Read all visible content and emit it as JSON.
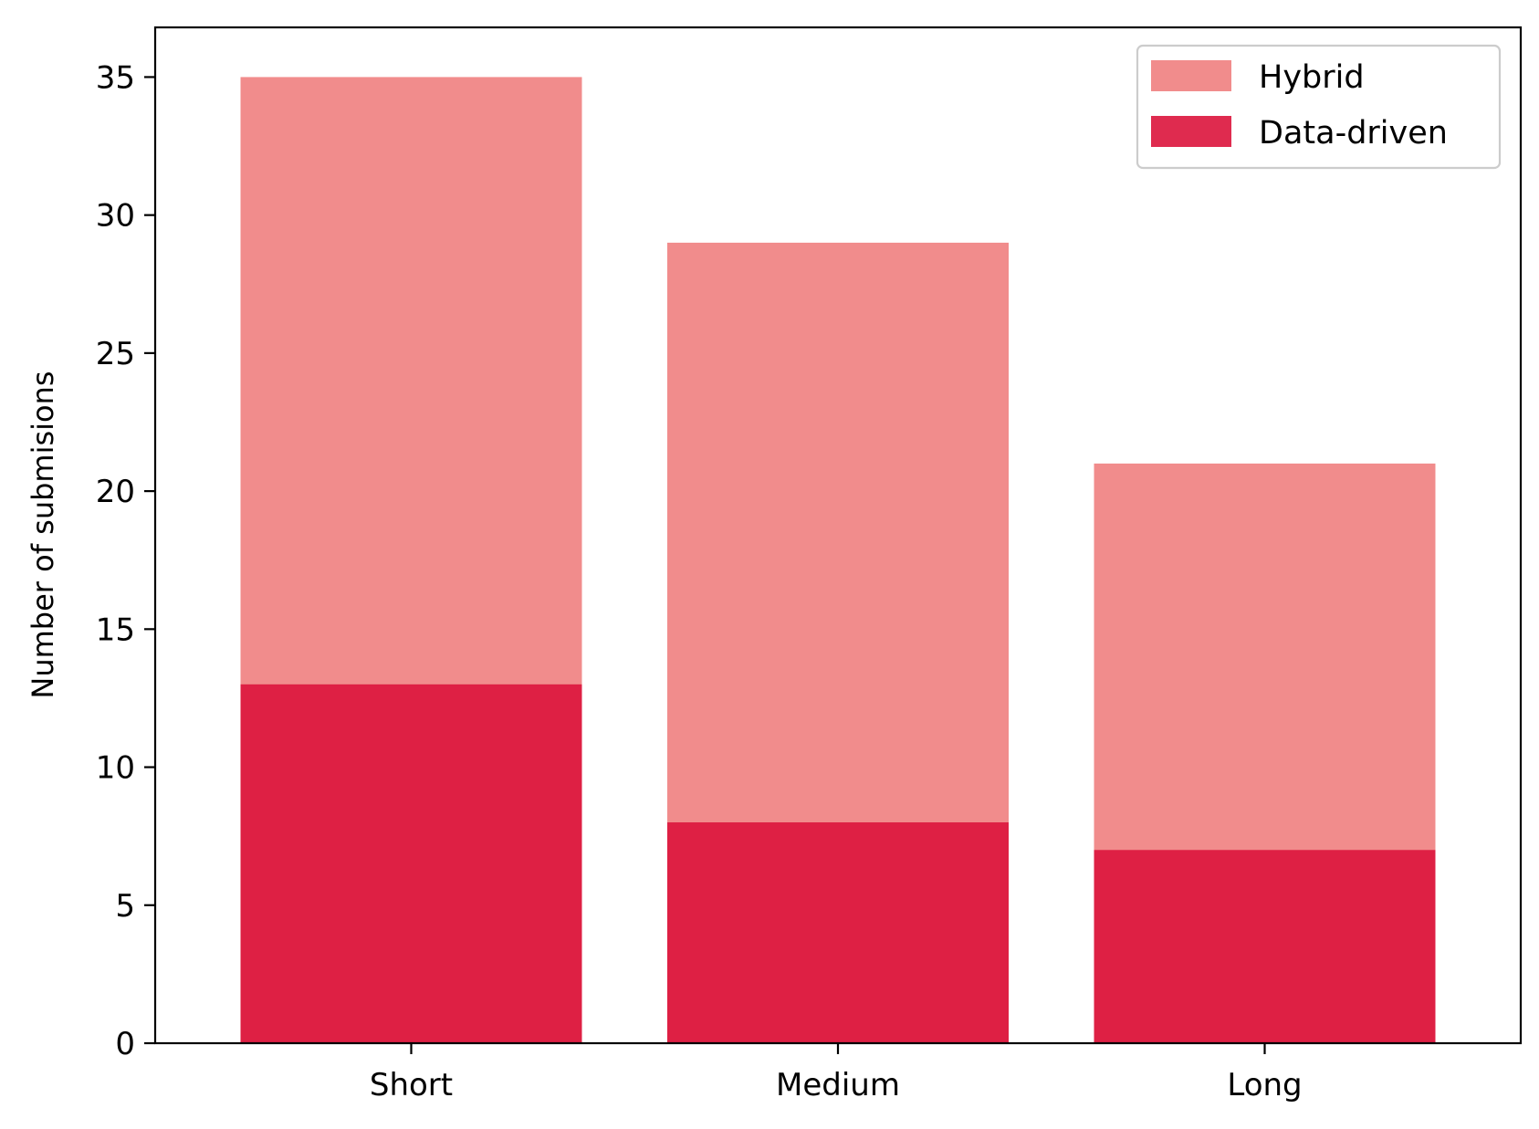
{
  "chart_data": {
    "type": "bar",
    "stacked_overlay": true,
    "title": "",
    "xlabel": "",
    "ylabel": "Number of submisions",
    "categories": [
      "Short",
      "Medium",
      "Long"
    ],
    "ylim": [
      0,
      36.8
    ],
    "yticks": [
      0,
      5,
      10,
      15,
      20,
      25,
      30,
      35
    ],
    "grid": false,
    "legend_position": "top-right",
    "series": [
      {
        "name": "Hybrid",
        "values": [
          35,
          29,
          21
        ],
        "color": "#F08080",
        "alpha": 0.9
      },
      {
        "name": "Data-driven",
        "values": [
          13,
          8,
          7
        ],
        "color": "#DC143C",
        "alpha": 0.9
      }
    ]
  }
}
